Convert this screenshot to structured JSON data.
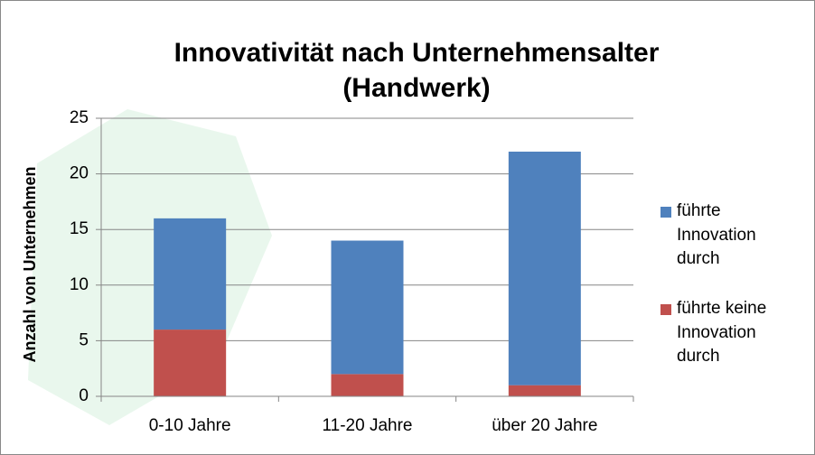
{
  "chart_data": {
    "type": "stacked_bar",
    "title": "Innovativität nach Unternehmensalter (Handwerk)",
    "y_label": "Anzahl von Unternehmen",
    "categories": [
      "0-10 Jahre",
      "11-20 Jahre",
      "über 20 Jahre"
    ],
    "series": [
      {
        "name": "führte Innovation durch",
        "color": "#4f81bd",
        "values": [
          10,
          12,
          21
        ]
      },
      {
        "name": "führte keine Innovation durch",
        "color": "#c0504d",
        "values": [
          6,
          2,
          1
        ]
      }
    ],
    "ylim": [
      0,
      25
    ],
    "yticks": [
      0,
      5,
      10,
      15,
      20,
      25
    ],
    "grid": true,
    "legend": "right"
  }
}
